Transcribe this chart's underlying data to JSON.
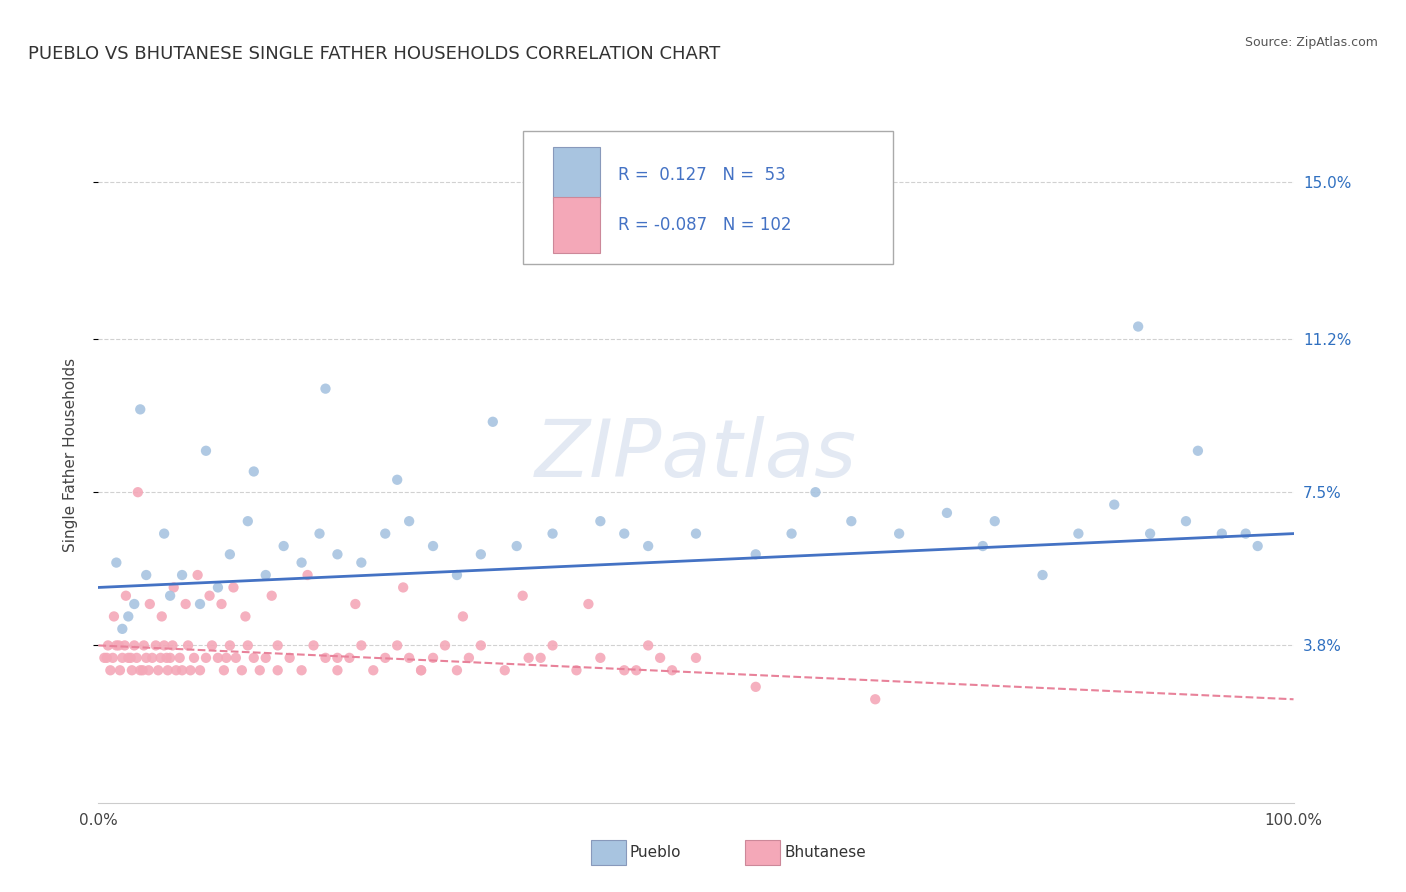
{
  "title": "PUEBLO VS BHUTANESE SINGLE FATHER HOUSEHOLDS CORRELATION CHART",
  "source": "Source: ZipAtlas.com",
  "ylabel": "Single Father Households",
  "xlim": [
    0.0,
    100.0
  ],
  "ylim": [
    0.0,
    16.8
  ],
  "yticks": [
    3.8,
    7.5,
    11.2,
    15.0
  ],
  "ytick_labels": [
    "3.8%",
    "7.5%",
    "11.2%",
    "15.0%"
  ],
  "xticks": [
    0.0,
    100.0
  ],
  "xtick_labels": [
    "0.0%",
    "100.0%"
  ],
  "pueblo_color": "#a8c4e0",
  "bhutanese_color": "#f4a8b8",
  "pueblo_line_color": "#4472c4",
  "bhutanese_line_color": "#e8829a",
  "pueblo_R": 0.127,
  "pueblo_N": 53,
  "bhutanese_R": -0.087,
  "bhutanese_N": 102,
  "pueblo_scatter_x": [
    1.5,
    2.0,
    2.5,
    3.0,
    4.0,
    5.5,
    6.0,
    7.0,
    8.5,
    10.0,
    11.0,
    12.5,
    14.0,
    15.5,
    17.0,
    18.5,
    20.0,
    22.0,
    24.0,
    26.0,
    28.0,
    30.0,
    32.0,
    35.0,
    38.0,
    42.0,
    46.0,
    50.0,
    55.0,
    60.0,
    63.0,
    67.0,
    71.0,
    75.0,
    79.0,
    82.0,
    85.0,
    88.0,
    91.0,
    94.0,
    97.0,
    3.5,
    9.0,
    13.0,
    19.0,
    25.0,
    33.0,
    44.0,
    58.0,
    74.0,
    87.0,
    92.0,
    96.0
  ],
  "pueblo_scatter_y": [
    5.8,
    4.2,
    4.5,
    4.8,
    5.5,
    6.5,
    5.0,
    5.5,
    4.8,
    5.2,
    6.0,
    6.8,
    5.5,
    6.2,
    5.8,
    6.5,
    6.0,
    5.8,
    6.5,
    6.8,
    6.2,
    5.5,
    6.0,
    6.2,
    6.5,
    6.8,
    6.2,
    6.5,
    6.0,
    7.5,
    6.8,
    6.5,
    7.0,
    6.8,
    5.5,
    6.5,
    7.2,
    6.5,
    6.8,
    6.5,
    6.2,
    9.5,
    8.5,
    8.0,
    10.0,
    7.8,
    9.2,
    6.5,
    6.5,
    6.2,
    11.5,
    8.5,
    6.5
  ],
  "bhutanese_scatter_x": [
    0.5,
    0.8,
    1.0,
    1.2,
    1.5,
    1.8,
    2.0,
    2.2,
    2.5,
    2.8,
    3.0,
    3.2,
    3.5,
    3.8,
    4.0,
    4.2,
    4.5,
    4.8,
    5.0,
    5.2,
    5.5,
    5.8,
    6.0,
    6.2,
    6.5,
    6.8,
    7.0,
    7.5,
    8.0,
    8.5,
    9.0,
    9.5,
    10.0,
    10.5,
    11.0,
    11.5,
    12.0,
    12.5,
    13.0,
    13.5,
    14.0,
    15.0,
    16.0,
    17.0,
    18.0,
    19.0,
    20.0,
    21.0,
    22.0,
    23.0,
    24.0,
    25.0,
    26.0,
    27.0,
    28.0,
    29.0,
    30.0,
    31.0,
    32.0,
    34.0,
    36.0,
    38.0,
    40.0,
    42.0,
    44.0,
    46.0,
    48.0,
    50.0,
    1.3,
    2.3,
    3.3,
    4.3,
    5.3,
    6.3,
    7.3,
    8.3,
    9.3,
    10.3,
    11.3,
    12.3,
    14.5,
    17.5,
    21.5,
    25.5,
    30.5,
    35.5,
    41.0,
    47.0,
    0.7,
    1.7,
    2.7,
    3.7,
    5.7,
    7.7,
    10.7,
    15.0,
    20.0,
    27.0,
    37.0,
    45.0,
    55.0,
    65.0
  ],
  "bhutanese_scatter_y": [
    3.5,
    3.8,
    3.2,
    3.5,
    3.8,
    3.2,
    3.5,
    3.8,
    3.5,
    3.2,
    3.8,
    3.5,
    3.2,
    3.8,
    3.5,
    3.2,
    3.5,
    3.8,
    3.2,
    3.5,
    3.8,
    3.2,
    3.5,
    3.8,
    3.2,
    3.5,
    3.2,
    3.8,
    3.5,
    3.2,
    3.5,
    3.8,
    3.5,
    3.2,
    3.8,
    3.5,
    3.2,
    3.8,
    3.5,
    3.2,
    3.5,
    3.8,
    3.5,
    3.2,
    3.8,
    3.5,
    3.2,
    3.5,
    3.8,
    3.2,
    3.5,
    3.8,
    3.5,
    3.2,
    3.5,
    3.8,
    3.2,
    3.5,
    3.8,
    3.2,
    3.5,
    3.8,
    3.2,
    3.5,
    3.2,
    3.8,
    3.2,
    3.5,
    4.5,
    5.0,
    7.5,
    4.8,
    4.5,
    5.2,
    4.8,
    5.5,
    5.0,
    4.8,
    5.2,
    4.5,
    5.0,
    5.5,
    4.8,
    5.2,
    4.5,
    5.0,
    4.8,
    3.5,
    3.5,
    3.8,
    3.5,
    3.2,
    3.5,
    3.2,
    3.5,
    3.2,
    3.5,
    3.2,
    3.5,
    3.2,
    2.8,
    2.5
  ],
  "background_color": "#ffffff",
  "grid_color": "#cccccc",
  "title_fontsize": 13,
  "axis_label_fontsize": 11,
  "tick_fontsize": 11,
  "watermark_text": "ZIPatlas",
  "watermark_color": "#ccd8ea",
  "watermark_alpha": 0.55,
  "pueblo_trend_y0": 5.2,
  "pueblo_trend_y1": 6.5,
  "bhutanese_trend_y0": 3.8,
  "bhutanese_trend_y1": 2.5
}
